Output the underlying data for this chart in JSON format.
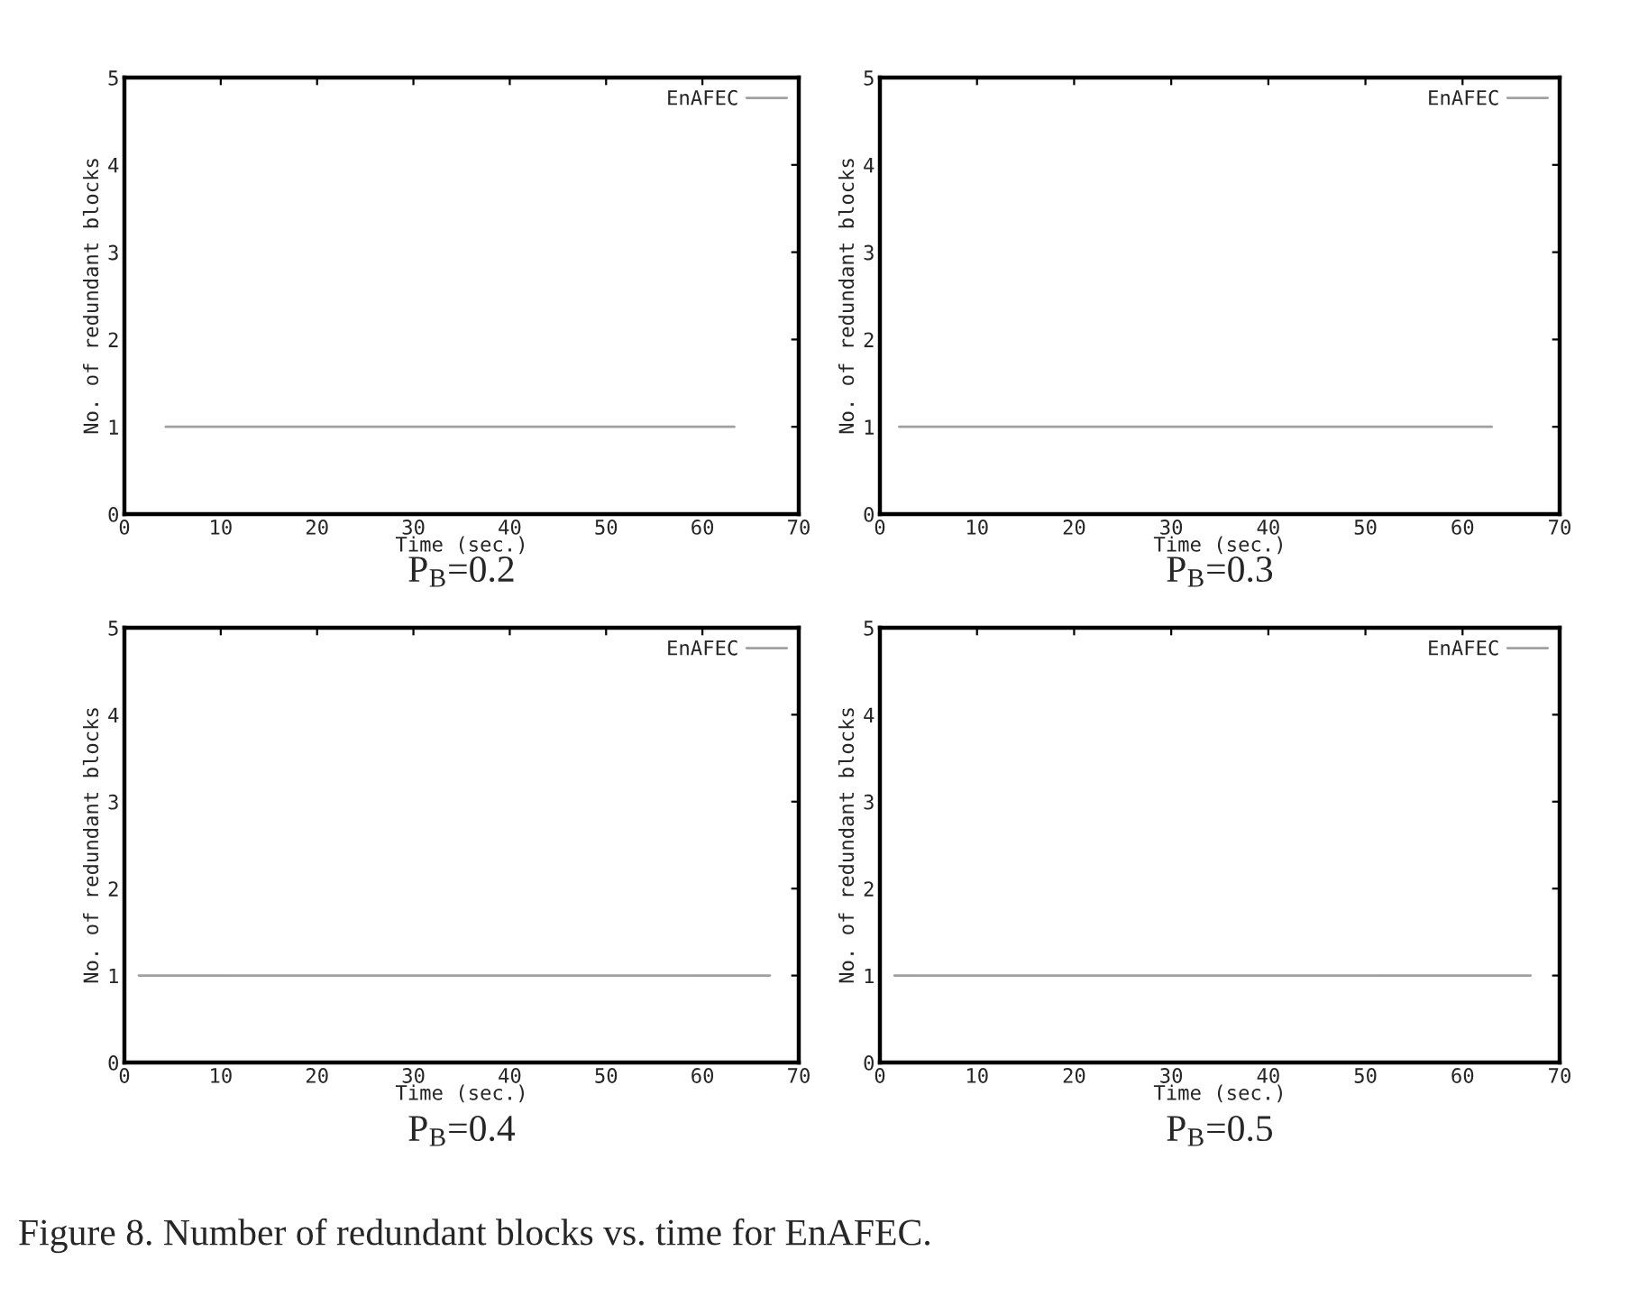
{
  "chart_data": [
    {
      "type": "line",
      "title": "P$_{B}$=0.2",
      "xlabel": "Time (sec.)",
      "ylabel": "No. of redundant blocks",
      "x": [
        4.3,
        63.3
      ],
      "series": [
        {
          "name": "EnAFEC",
          "color": "#a0a0a0",
          "values": [
            1,
            1
          ]
        }
      ],
      "xlim": [
        0,
        70
      ],
      "xticks": [
        0,
        10,
        20,
        30,
        40,
        50,
        60,
        70
      ],
      "ylim": [
        0,
        5
      ],
      "yticks": [
        0,
        1,
        2,
        3,
        4,
        5
      ],
      "legend": "top right",
      "grid": false
    },
    {
      "type": "line",
      "title": "P$_{B}$=0.3",
      "xlabel": "Time (sec.)",
      "ylabel": "No. of redundant blocks",
      "x": [
        2,
        63
      ],
      "series": [
        {
          "name": "EnAFEC",
          "color": "#a0a0a0",
          "values": [
            1,
            1
          ]
        }
      ],
      "xlim": [
        0,
        70
      ],
      "xticks": [
        0,
        10,
        20,
        30,
        40,
        50,
        60,
        70
      ],
      "ylim": [
        0,
        5
      ],
      "yticks": [
        0,
        1,
        2,
        3,
        4,
        5
      ],
      "legend": "top right",
      "grid": false
    },
    {
      "type": "line",
      "title": "P$_{B}$=0.4",
      "xlabel": "Time (sec.)",
      "ylabel": "No. of redundant blocks",
      "x": [
        1.5,
        67
      ],
      "series": [
        {
          "name": "EnAFEC",
          "color": "#a0a0a0",
          "values": [
            1,
            1
          ]
        }
      ],
      "xlim": [
        0,
        70
      ],
      "xticks": [
        0,
        10,
        20,
        30,
        40,
        50,
        60,
        70
      ],
      "ylim": [
        0,
        5
      ],
      "yticks": [
        0,
        1,
        2,
        3,
        4,
        5
      ],
      "legend": "top right",
      "grid": false
    },
    {
      "type": "line",
      "title": "P$_{B}$=0.5",
      "xlabel": "Time (sec.)",
      "ylabel": "No. of redundant blocks",
      "x": [
        1.5,
        67
      ],
      "series": [
        {
          "name": "EnAFEC",
          "color": "#a0a0a0",
          "values": [
            1,
            1
          ]
        }
      ],
      "xlim": [
        0,
        70
      ],
      "xticks": [
        0,
        10,
        20,
        30,
        40,
        50,
        60,
        70
      ],
      "ylim": [
        0,
        5
      ],
      "yticks": [
        0,
        1,
        2,
        3,
        4,
        5
      ],
      "legend": "top right",
      "grid": false,
      "annotations": [
        "Figure 8. Number of redundant blocks vs. time for EnAFEC."
      ]
    }
  ]
}
